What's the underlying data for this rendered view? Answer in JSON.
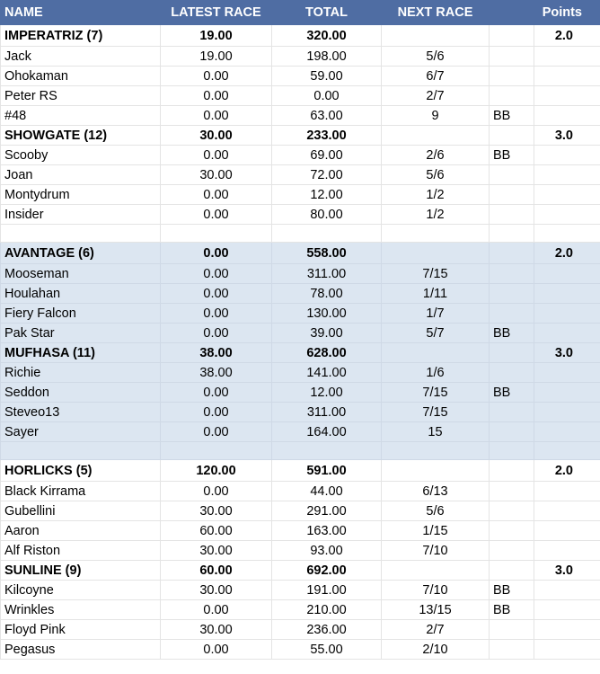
{
  "headers": {
    "name": "NAME",
    "latest_race": "LATEST RACE",
    "total": "TOTAL",
    "next_race": "NEXT RACE",
    "points": "Points"
  },
  "colors": {
    "header_bg": "#4f6da3",
    "shaded_group_bg": "#dce6f1"
  },
  "groups": [
    {
      "shaded": false,
      "teams": [
        {
          "name": "IMPERATRIZ (7)",
          "latest": "19.00",
          "total": "320.00",
          "points": "2.0",
          "members": [
            {
              "name": "Jack",
              "latest": "19.00",
              "total": "198.00",
              "next": "5/6",
              "tag": ""
            },
            {
              "name": "Ohokaman",
              "latest": "0.00",
              "total": "59.00",
              "next": "6/7",
              "tag": ""
            },
            {
              "name": "Peter RS",
              "latest": "0.00",
              "total": "0.00",
              "next": "2/7",
              "tag": ""
            },
            {
              "name": "#48",
              "latest": "0.00",
              "total": "63.00",
              "next": "9",
              "tag": "BB"
            }
          ]
        },
        {
          "name": "SHOWGATE (12)",
          "latest": "30.00",
          "total": "233.00",
          "points": "3.0",
          "members": [
            {
              "name": "Scooby",
              "latest": "0.00",
              "total": "69.00",
              "next": "2/6",
              "tag": "BB"
            },
            {
              "name": "Joan",
              "latest": "30.00",
              "total": "72.00",
              "next": "5/6",
              "tag": ""
            },
            {
              "name": "Montydrum",
              "latest": "0.00",
              "total": "12.00",
              "next": "1/2",
              "tag": ""
            },
            {
              "name": "Insider",
              "latest": "0.00",
              "total": "80.00",
              "next": "1/2",
              "tag": ""
            }
          ]
        }
      ]
    },
    {
      "shaded": true,
      "teams": [
        {
          "name": "AVANTAGE (6)",
          "latest": "0.00",
          "total": "558.00",
          "points": "2.0",
          "members": [
            {
              "name": "Mooseman",
              "latest": "0.00",
              "total": "311.00",
              "next": "7/15",
              "tag": ""
            },
            {
              "name": "Houlahan",
              "latest": "0.00",
              "total": "78.00",
              "next": "1/11",
              "tag": ""
            },
            {
              "name": "Fiery Falcon",
              "latest": "0.00",
              "total": "130.00",
              "next": "1/7",
              "tag": ""
            },
            {
              "name": "Pak Star",
              "latest": "0.00",
              "total": "39.00",
              "next": "5/7",
              "tag": "BB"
            }
          ]
        },
        {
          "name": "MUFHASA (11)",
          "latest": "38.00",
          "total": "628.00",
          "points": "3.0",
          "members": [
            {
              "name": "Richie",
              "latest": "38.00",
              "total": "141.00",
              "next": "1/6",
              "tag": ""
            },
            {
              "name": "Seddon",
              "latest": "0.00",
              "total": "12.00",
              "next": "7/15",
              "tag": "BB"
            },
            {
              "name": "Steveo13",
              "latest": "0.00",
              "total": "311.00",
              "next": "7/15",
              "tag": ""
            },
            {
              "name": "Sayer",
              "latest": "0.00",
              "total": "164.00",
              "next": "15",
              "tag": ""
            }
          ]
        }
      ]
    },
    {
      "shaded": false,
      "teams": [
        {
          "name": "HORLICKS (5)",
          "latest": "120.00",
          "total": "591.00",
          "points": "2.0",
          "members": [
            {
              "name": "Black Kirrama",
              "latest": "0.00",
              "total": "44.00",
              "next": "6/13",
              "tag": ""
            },
            {
              "name": "Gubellini",
              "latest": "30.00",
              "total": "291.00",
              "next": "5/6",
              "tag": ""
            },
            {
              "name": "Aaron",
              "latest": "60.00",
              "total": "163.00",
              "next": "1/15",
              "tag": ""
            },
            {
              "name": "Alf Riston",
              "latest": "30.00",
              "total": "93.00",
              "next": "7/10",
              "tag": ""
            }
          ]
        },
        {
          "name": "SUNLINE (9)",
          "latest": "60.00",
          "total": "692.00",
          "points": "3.0",
          "members": [
            {
              "name": "Kilcoyne",
              "latest": "30.00",
              "total": "191.00",
              "next": "7/10",
              "tag": "BB"
            },
            {
              "name": "Wrinkles",
              "latest": "0.00",
              "total": "210.00",
              "next": "13/15",
              "tag": "BB"
            },
            {
              "name": "Floyd Pink",
              "latest": "30.00",
              "total": "236.00",
              "next": "2/7",
              "tag": ""
            },
            {
              "name": "Pegasus",
              "latest": "0.00",
              "total": "55.00",
              "next": "2/10",
              "tag": ""
            }
          ]
        }
      ]
    }
  ]
}
